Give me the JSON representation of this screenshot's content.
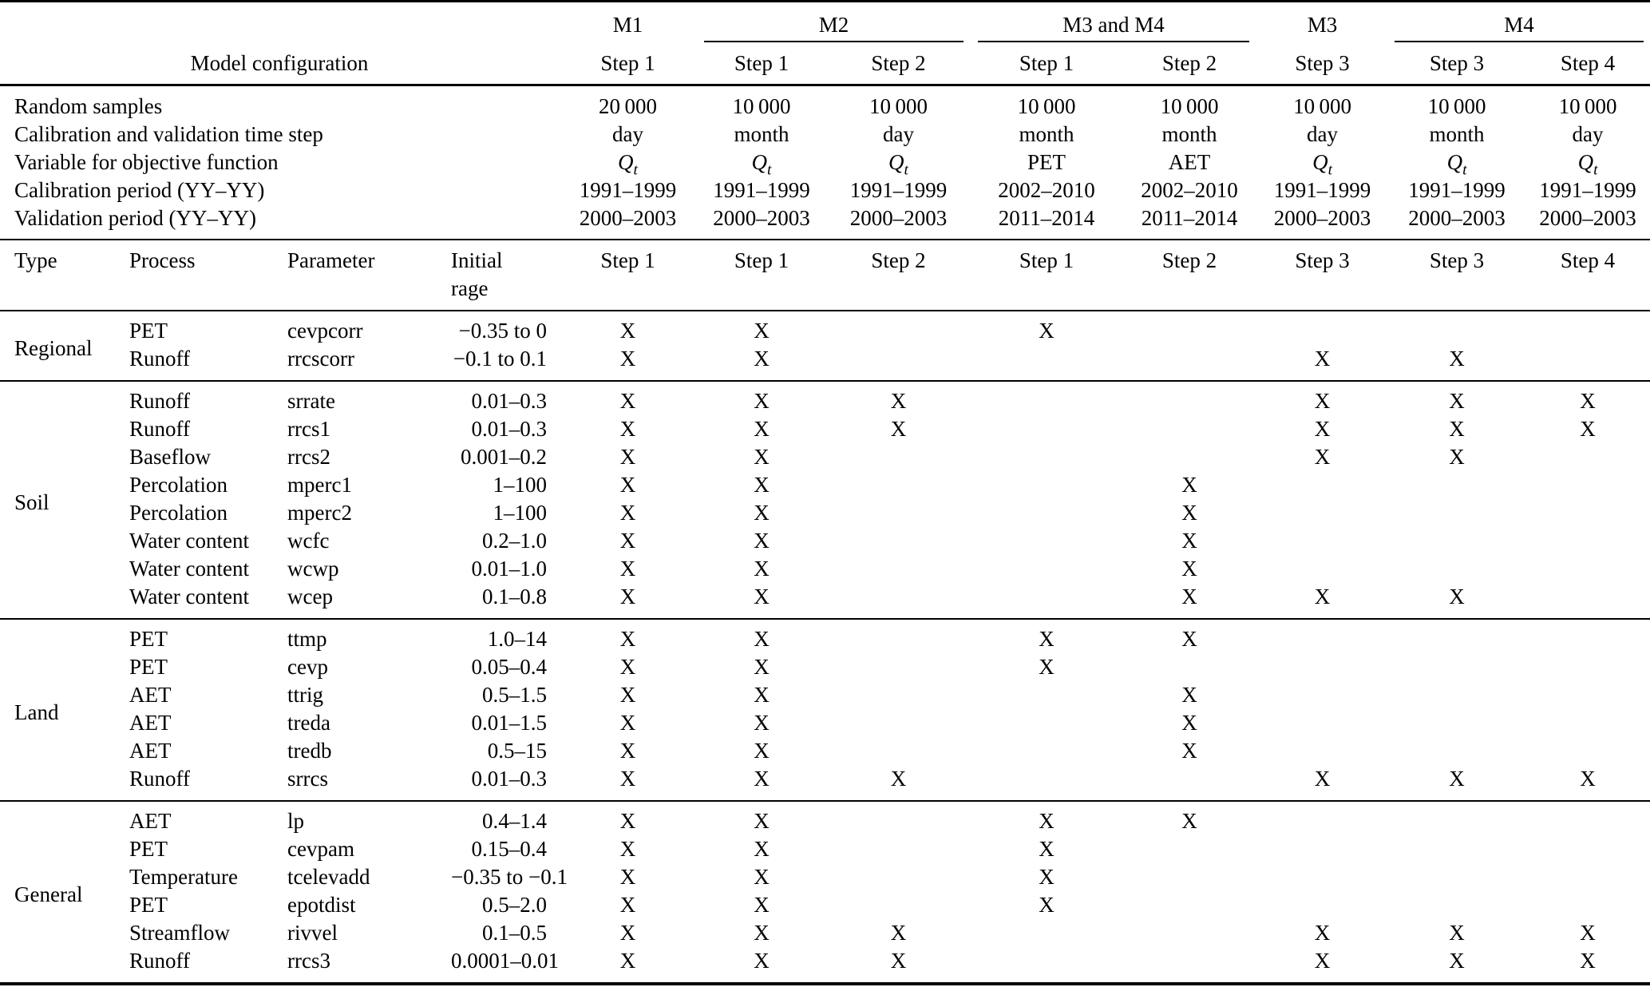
{
  "page": {
    "background": "#ffffff",
    "text_color": "#000000"
  },
  "table": {
    "mark_char": "X",
    "group_header": [
      {
        "label": "",
        "span": 4,
        "underline": false
      },
      {
        "label": "M1",
        "span": 1,
        "underline": false
      },
      {
        "label": "M2",
        "span": 2,
        "underline": true
      },
      {
        "label": "M3 and M4",
        "span": 2,
        "underline": true
      },
      {
        "label": "M3",
        "span": 1,
        "underline": false
      },
      {
        "label": "M4",
        "span": 2,
        "underline": true
      }
    ],
    "subheader_label": "Model configuration",
    "step_headers": [
      "Step 1",
      "Step 1",
      "Step 2",
      "Step 1",
      "Step 2",
      "Step 3",
      "Step 3",
      "Step 4"
    ],
    "config_rows": [
      {
        "label": "Random samples",
        "values": [
          "20 000",
          "10 000",
          "10 000",
          "10 000",
          "10 000",
          "10 000",
          "10 000",
          "10 000"
        ]
      },
      {
        "label": "Calibration and validation time step",
        "values": [
          "day",
          "month",
          "day",
          "month",
          "month",
          "day",
          "month",
          "day"
        ]
      },
      {
        "label": "Variable for objective function",
        "values": [
          "Q_t",
          "Q_t",
          "Q_t",
          "PET",
          "AET",
          "Q_t",
          "Q_t",
          "Q_t"
        ]
      },
      {
        "label": "Calibration period (YY–YY)",
        "values": [
          "1991–1999",
          "1991–1999",
          "1991–1999",
          "2002–2010",
          "2002–2010",
          "1991–1999",
          "1991–1999",
          "1991–1999"
        ]
      },
      {
        "label": "Validation period (YY–YY)",
        "values": [
          "2000–2003",
          "2000–2003",
          "2000–2003",
          "2011–2014",
          "2011–2014",
          "2000–2003",
          "2000–2003",
          "2000–2003"
        ]
      }
    ],
    "param_header": {
      "type": "Type",
      "process": "Process",
      "parameter": "Parameter",
      "initial_range": [
        "Initial",
        "rage"
      ],
      "steps": [
        "Step 1",
        "Step 1",
        "Step 2",
        "Step 1",
        "Step 2",
        "Step 3",
        "Step 3",
        "Step 4"
      ]
    },
    "sections": [
      {
        "type": "Regional",
        "rows": [
          {
            "process": "PET",
            "parameter": "cevpcorr",
            "range": "−0.35 to 0",
            "marks": [
              "X",
              "X",
              "",
              "X",
              "",
              "",
              "",
              ""
            ]
          },
          {
            "process": "Runoff",
            "parameter": "rrcscorr",
            "range": "−0.1 to 0.1",
            "marks": [
              "X",
              "X",
              "",
              "",
              "",
              "X",
              "X",
              ""
            ]
          }
        ]
      },
      {
        "type": "Soil",
        "rows": [
          {
            "process": "Runoff",
            "parameter": "srrate",
            "range": "0.01–0.3",
            "marks": [
              "X",
              "X",
              "X",
              "",
              "",
              "X",
              "X",
              "X"
            ]
          },
          {
            "process": "Runoff",
            "parameter": "rrcs1",
            "range": "0.01–0.3",
            "marks": [
              "X",
              "X",
              "X",
              "",
              "",
              "X",
              "X",
              "X"
            ]
          },
          {
            "process": "Baseflow",
            "parameter": "rrcs2",
            "range": "0.001–0.2",
            "marks": [
              "X",
              "X",
              "",
              "",
              "",
              "X",
              "X",
              ""
            ]
          },
          {
            "process": "Percolation",
            "parameter": "mperc1",
            "range": "1–100",
            "marks": [
              "X",
              "X",
              "",
              "",
              "X",
              "",
              "",
              ""
            ]
          },
          {
            "process": "Percolation",
            "parameter": "mperc2",
            "range": "1–100",
            "marks": [
              "X",
              "X",
              "",
              "",
              "X",
              "",
              "",
              ""
            ]
          },
          {
            "process": "Water content",
            "parameter": "wcfc",
            "range": "0.2–1.0",
            "marks": [
              "X",
              "X",
              "",
              "",
              "X",
              "",
              "",
              ""
            ]
          },
          {
            "process": "Water content",
            "parameter": "wcwp",
            "range": "0.01–1.0",
            "marks": [
              "X",
              "X",
              "",
              "",
              "X",
              "",
              "",
              ""
            ]
          },
          {
            "process": "Water content",
            "parameter": "wcep",
            "range": "0.1–0.8",
            "marks": [
              "X",
              "X",
              "",
              "",
              "X",
              "X",
              "X",
              ""
            ]
          }
        ]
      },
      {
        "type": "Land",
        "rows": [
          {
            "process": "PET",
            "parameter": "ttmp",
            "range": "1.0–14",
            "marks": [
              "X",
              "X",
              "",
              "X",
              "X",
              "",
              "",
              ""
            ]
          },
          {
            "process": "PET",
            "parameter": "cevp",
            "range": "0.05–0.4",
            "marks": [
              "X",
              "X",
              "",
              "X",
              "",
              "",
              "",
              ""
            ]
          },
          {
            "process": "AET",
            "parameter": "ttrig",
            "range": "0.5–1.5",
            "marks": [
              "X",
              "X",
              "",
              "",
              "X",
              "",
              "",
              ""
            ]
          },
          {
            "process": "AET",
            "parameter": "treda",
            "range": "0.01–1.5",
            "marks": [
              "X",
              "X",
              "",
              "",
              "X",
              "",
              "",
              ""
            ]
          },
          {
            "process": "AET",
            "parameter": "tredb",
            "range": "0.5–15",
            "marks": [
              "X",
              "X",
              "",
              "",
              "X",
              "",
              "",
              ""
            ]
          },
          {
            "process": "Runoff",
            "parameter": "srrcs",
            "range": "0.01–0.3",
            "marks": [
              "X",
              "X",
              "X",
              "",
              "",
              "X",
              "X",
              "X"
            ]
          }
        ]
      },
      {
        "type": "General",
        "rows": [
          {
            "process": "AET",
            "parameter": "lp",
            "range": "0.4–1.4",
            "marks": [
              "X",
              "X",
              "",
              "X",
              "X",
              "",
              "",
              ""
            ]
          },
          {
            "process": "PET",
            "parameter": "cevpam",
            "range": "0.15–0.4",
            "marks": [
              "X",
              "X",
              "",
              "X",
              "",
              "",
              "",
              ""
            ]
          },
          {
            "process": "Temperature",
            "parameter": "tcelevadd",
            "range": "−0.35 to −0.1",
            "marks": [
              "X",
              "X",
              "",
              "X",
              "",
              "",
              "",
              ""
            ]
          },
          {
            "process": "PET",
            "parameter": "epotdist",
            "range": "0.5–2.0",
            "marks": [
              "X",
              "X",
              "",
              "X",
              "",
              "",
              "",
              ""
            ]
          },
          {
            "process": "Streamflow",
            "parameter": "rivvel",
            "range": "0.1–0.5",
            "marks": [
              "X",
              "X",
              "X",
              "",
              "",
              "X",
              "X",
              "X"
            ]
          },
          {
            "process": "Runoff",
            "parameter": "rrcs3",
            "range": "0.0001–0.01",
            "marks": [
              "X",
              "X",
              "X",
              "",
              "",
              "X",
              "X",
              "X"
            ]
          }
        ]
      }
    ]
  }
}
